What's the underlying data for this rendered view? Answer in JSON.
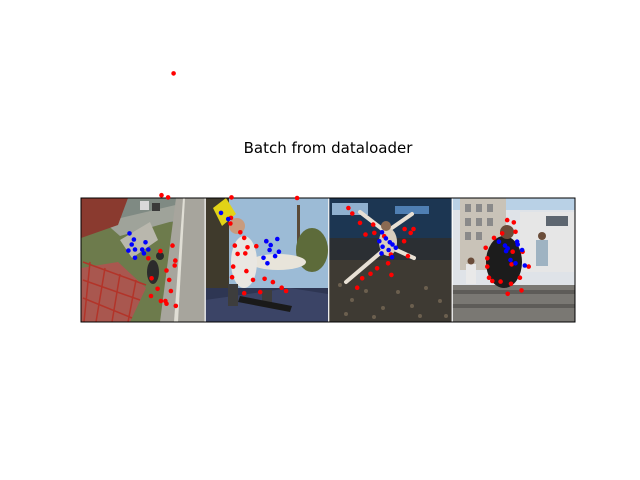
{
  "figure": {
    "title": "Batch from dataloader"
  },
  "colors": {
    "background": "#ffffff",
    "keypoint_a": "#ff0000",
    "keypoint_b": "#0000ff",
    "axes_frame": "#000000"
  },
  "chart_data": {
    "type": "scatter",
    "title": "Batch from dataloader",
    "xlabel": "",
    "ylabel": "",
    "axes_visible": false,
    "grid": false,
    "legend": "none",
    "image_grid": {
      "count": 4,
      "tile_size": [
        224,
        224
      ],
      "xlim": [
        0,
        896
      ],
      "ylim": [
        224,
        0
      ]
    },
    "panels": [
      {
        "name": "",
        "description": "stairs, sidewalk, grass",
        "series": [
          {
            "color": "#ff0000",
            "points": [
              [
                168,
                -225
              ],
              [
                146,
                -5
              ],
              [
                158,
                -1
              ],
              [
                166,
                86
              ],
              [
                144,
                96
              ],
              [
                122,
                109
              ],
              [
                128,
                145
              ],
              [
                139,
                164
              ],
              [
                127,
                177
              ],
              [
                145,
                186
              ],
              [
                155,
                191
              ],
              [
                163,
                168
              ],
              [
                160,
                148
              ],
              [
                155,
                131
              ],
              [
                171,
                113
              ],
              [
                170,
                122
              ],
              [
                153,
                186
              ],
              [
                172,
                195
              ]
            ]
          },
          {
            "color": "#0000ff",
            "points": [
              [
                88,
                64
              ],
              [
                96,
                75
              ],
              [
                92,
                84
              ],
              [
                86,
                95
              ],
              [
                98,
                93
              ],
              [
                111,
                93
              ],
              [
                117,
                80
              ],
              [
                122,
                93
              ],
              [
                114,
                100
              ],
              [
                98,
                108
              ]
            ]
          }
        ]
      },
      {
        "name": "",
        "description": "skateboarder at ramp",
        "series": [
          {
            "color": "#ff0000",
            "points": [
              [
                49,
                -1
              ],
              [
                168,
                0
              ],
              [
                48,
                36
              ],
              [
                47,
                46
              ],
              [
                55,
                86
              ],
              [
                60,
                101
              ],
              [
                52,
                124
              ],
              [
                76,
                132
              ],
              [
                109,
                146
              ],
              [
                124,
                152
              ],
              [
                140,
                162
              ],
              [
                148,
                168
              ],
              [
                78,
                89
              ],
              [
                94,
                87
              ],
              [
                112,
                78
              ],
              [
                72,
                72
              ],
              [
                65,
                62
              ],
              [
                88,
                148
              ],
              [
                101,
                170
              ],
              [
                74,
                100
              ],
              [
                50,
                143
              ],
              [
                72,
                172
              ]
            ]
          },
          {
            "color": "#0000ff",
            "points": [
              [
                30,
                27
              ],
              [
                43,
                38
              ],
              [
                112,
                78
              ],
              [
                120,
                85
              ],
              [
                132,
                74
              ],
              [
                135,
                97
              ],
              [
                128,
                105
              ],
              [
                114,
                118
              ],
              [
                107,
                108
              ],
              [
                118,
                94
              ]
            ]
          }
        ]
      },
      {
        "name": "",
        "description": "ballet dancer leaping",
        "series": [
          {
            "color": "#ff0000",
            "points": [
              [
                37,
                18
              ],
              [
                44,
                28
              ],
              [
                58,
                45
              ],
              [
                82,
                48
              ],
              [
                68,
                66
              ],
              [
                84,
                63
              ],
              [
                102,
                69
              ],
              [
                138,
                78
              ],
              [
                150,
                63
              ],
              [
                155,
                56
              ],
              [
                139,
                56
              ],
              [
                114,
                102
              ],
              [
                109,
                118
              ],
              [
                89,
                127
              ],
              [
                77,
                137
              ],
              [
                62,
                145
              ],
              [
                53,
                162
              ],
              [
                145,
                105
              ],
              [
                115,
                139
              ]
            ]
          },
          {
            "color": "#0000ff",
            "points": [
              [
                98,
                62
              ],
              [
                105,
                73
              ],
              [
                112,
                80
              ],
              [
                99,
                88
              ],
              [
                110,
                94
              ],
              [
                117,
                84
              ],
              [
                97,
                100
              ],
              [
                116,
                107
              ],
              [
                93,
                78
              ],
              [
                123,
                90
              ]
            ]
          }
        ]
      },
      {
        "name": "",
        "description": "person jumping in front of building",
        "series": [
          {
            "color": "#ff0000",
            "points": [
              [
                101,
                40
              ],
              [
                113,
                44
              ],
              [
                116,
                61
              ],
              [
                92,
                64
              ],
              [
                77,
                72
              ],
              [
                62,
                90
              ],
              [
                65,
                109
              ],
              [
                65,
                124
              ],
              [
                68,
                144
              ],
              [
                74,
                150
              ],
              [
                89,
                151
              ],
              [
                108,
                155
              ],
              [
                124,
                144
              ],
              [
                109,
                120
              ],
              [
                111,
                97
              ],
              [
                129,
                97
              ],
              [
                140,
                124
              ],
              [
                127,
                167
              ],
              [
                102,
                173
              ]
            ]
          },
          {
            "color": "#0000ff",
            "points": [
              [
                86,
                79
              ],
              [
                97,
                86
              ],
              [
                102,
                91
              ],
              [
                119,
                79
              ],
              [
                120,
                84
              ],
              [
                128,
                94
              ],
              [
                107,
                112
              ],
              [
                116,
                118
              ],
              [
                133,
                122
              ],
              [
                99,
                96
              ]
            ]
          }
        ]
      }
    ]
  }
}
